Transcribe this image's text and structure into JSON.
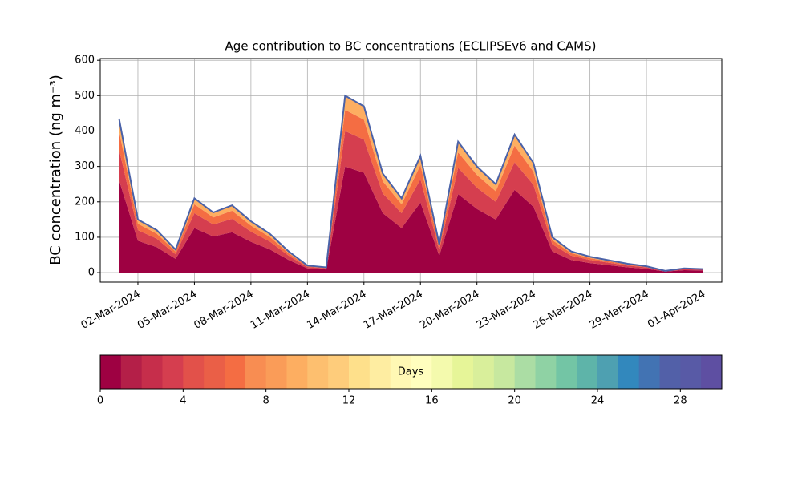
{
  "chart_data": {
    "type": "stacked_area",
    "title": "Age contribution to BC concentrations (ECLIPSEv6 and CAMS)",
    "ylabel": "BC concentration (ng m⁻³)",
    "x": [
      "01-Mar-2024",
      "02-Mar-2024",
      "03-Mar-2024",
      "04-Mar-2024",
      "05-Mar-2024",
      "06-Mar-2024",
      "07-Mar-2024",
      "08-Mar-2024",
      "09-Mar-2024",
      "10-Mar-2024",
      "11-Mar-2024",
      "12-Mar-2024",
      "13-Mar-2024",
      "14-Mar-2024",
      "15-Mar-2024",
      "16-Mar-2024",
      "17-Mar-2024",
      "18-Mar-2024",
      "19-Mar-2024",
      "20-Mar-2024",
      "21-Mar-2024",
      "22-Mar-2024",
      "23-Mar-2024",
      "24-Mar-2024",
      "25-Mar-2024",
      "26-Mar-2024",
      "27-Mar-2024",
      "28-Mar-2024",
      "29-Mar-2024",
      "30-Mar-2024",
      "31-Mar-2024",
      "01-Apr-2024"
    ],
    "series": [
      {
        "color": "#9e0142",
        "values": [
          261,
          90,
          72,
          39,
          126,
          102,
          114,
          87,
          66,
          36,
          12,
          9,
          300,
          282,
          168,
          126,
          198,
          48,
          222,
          180,
          150,
          234,
          186,
          60,
          36,
          27,
          21,
          15,
          11,
          3,
          7,
          6
        ]
      },
      {
        "color": "#d53e4f",
        "values": [
          87,
          30,
          24,
          13,
          42,
          34,
          38,
          29,
          22,
          12,
          4,
          3,
          100,
          94,
          56,
          42,
          66,
          16,
          74,
          60,
          50,
          78,
          62,
          20,
          12,
          9,
          7,
          5,
          4,
          1,
          3,
          2
        ]
      },
      {
        "color": "#f46d43",
        "values": [
          52,
          18,
          14,
          8,
          25,
          20,
          23,
          17,
          13,
          7,
          2,
          2,
          60,
          56,
          34,
          25,
          40,
          10,
          44,
          36,
          30,
          47,
          37,
          12,
          7,
          5,
          4,
          3,
          2,
          1,
          1,
          1
        ]
      },
      {
        "color": "#fdae61",
        "values": [
          35,
          12,
          10,
          5,
          17,
          14,
          15,
          12,
          9,
          5,
          2,
          1,
          40,
          38,
          22,
          17,
          26,
          6,
          30,
          24,
          20,
          31,
          25,
          8,
          5,
          4,
          3,
          2,
          1,
          0,
          1,
          1
        ]
      }
    ],
    "outline_color": "#4a62a8",
    "xlim": [
      "29-Feb-2024",
      "02-Apr-2024"
    ],
    "xticks": [
      "02-Mar-2024",
      "05-Mar-2024",
      "08-Mar-2024",
      "11-Mar-2024",
      "14-Mar-2024",
      "17-Mar-2024",
      "20-Mar-2024",
      "23-Mar-2024",
      "26-Mar-2024",
      "29-Mar-2024",
      "01-Apr-2024"
    ],
    "ylim": [
      -27,
      605
    ],
    "yticks": [
      0,
      100,
      200,
      300,
      400,
      500,
      600
    ],
    "grid": true,
    "colorbar": {
      "label": "Days",
      "clim": [
        0,
        30
      ],
      "cticks": [
        0,
        4,
        8,
        12,
        16,
        20,
        24,
        28
      ],
      "colors": [
        "#9e0142",
        "#b41f48",
        "#c62e4b",
        "#d53e4f",
        "#e2514a",
        "#ea5f47",
        "#f46d43",
        "#f88d52",
        "#fa9c58",
        "#fdae61",
        "#fdbf6f",
        "#fecc7b",
        "#fee08b",
        "#feeda1",
        "#fff8b4",
        "#fffebe",
        "#f4faad",
        "#e6f598",
        "#d9ef9b",
        "#c7e89f",
        "#abdda4",
        "#8fd2a4",
        "#73c5a5",
        "#5eb4a9",
        "#4ea0b1",
        "#3288bd",
        "#4273b3",
        "#5260a8",
        "#585aa6",
        "#5e4fa2"
      ]
    }
  }
}
